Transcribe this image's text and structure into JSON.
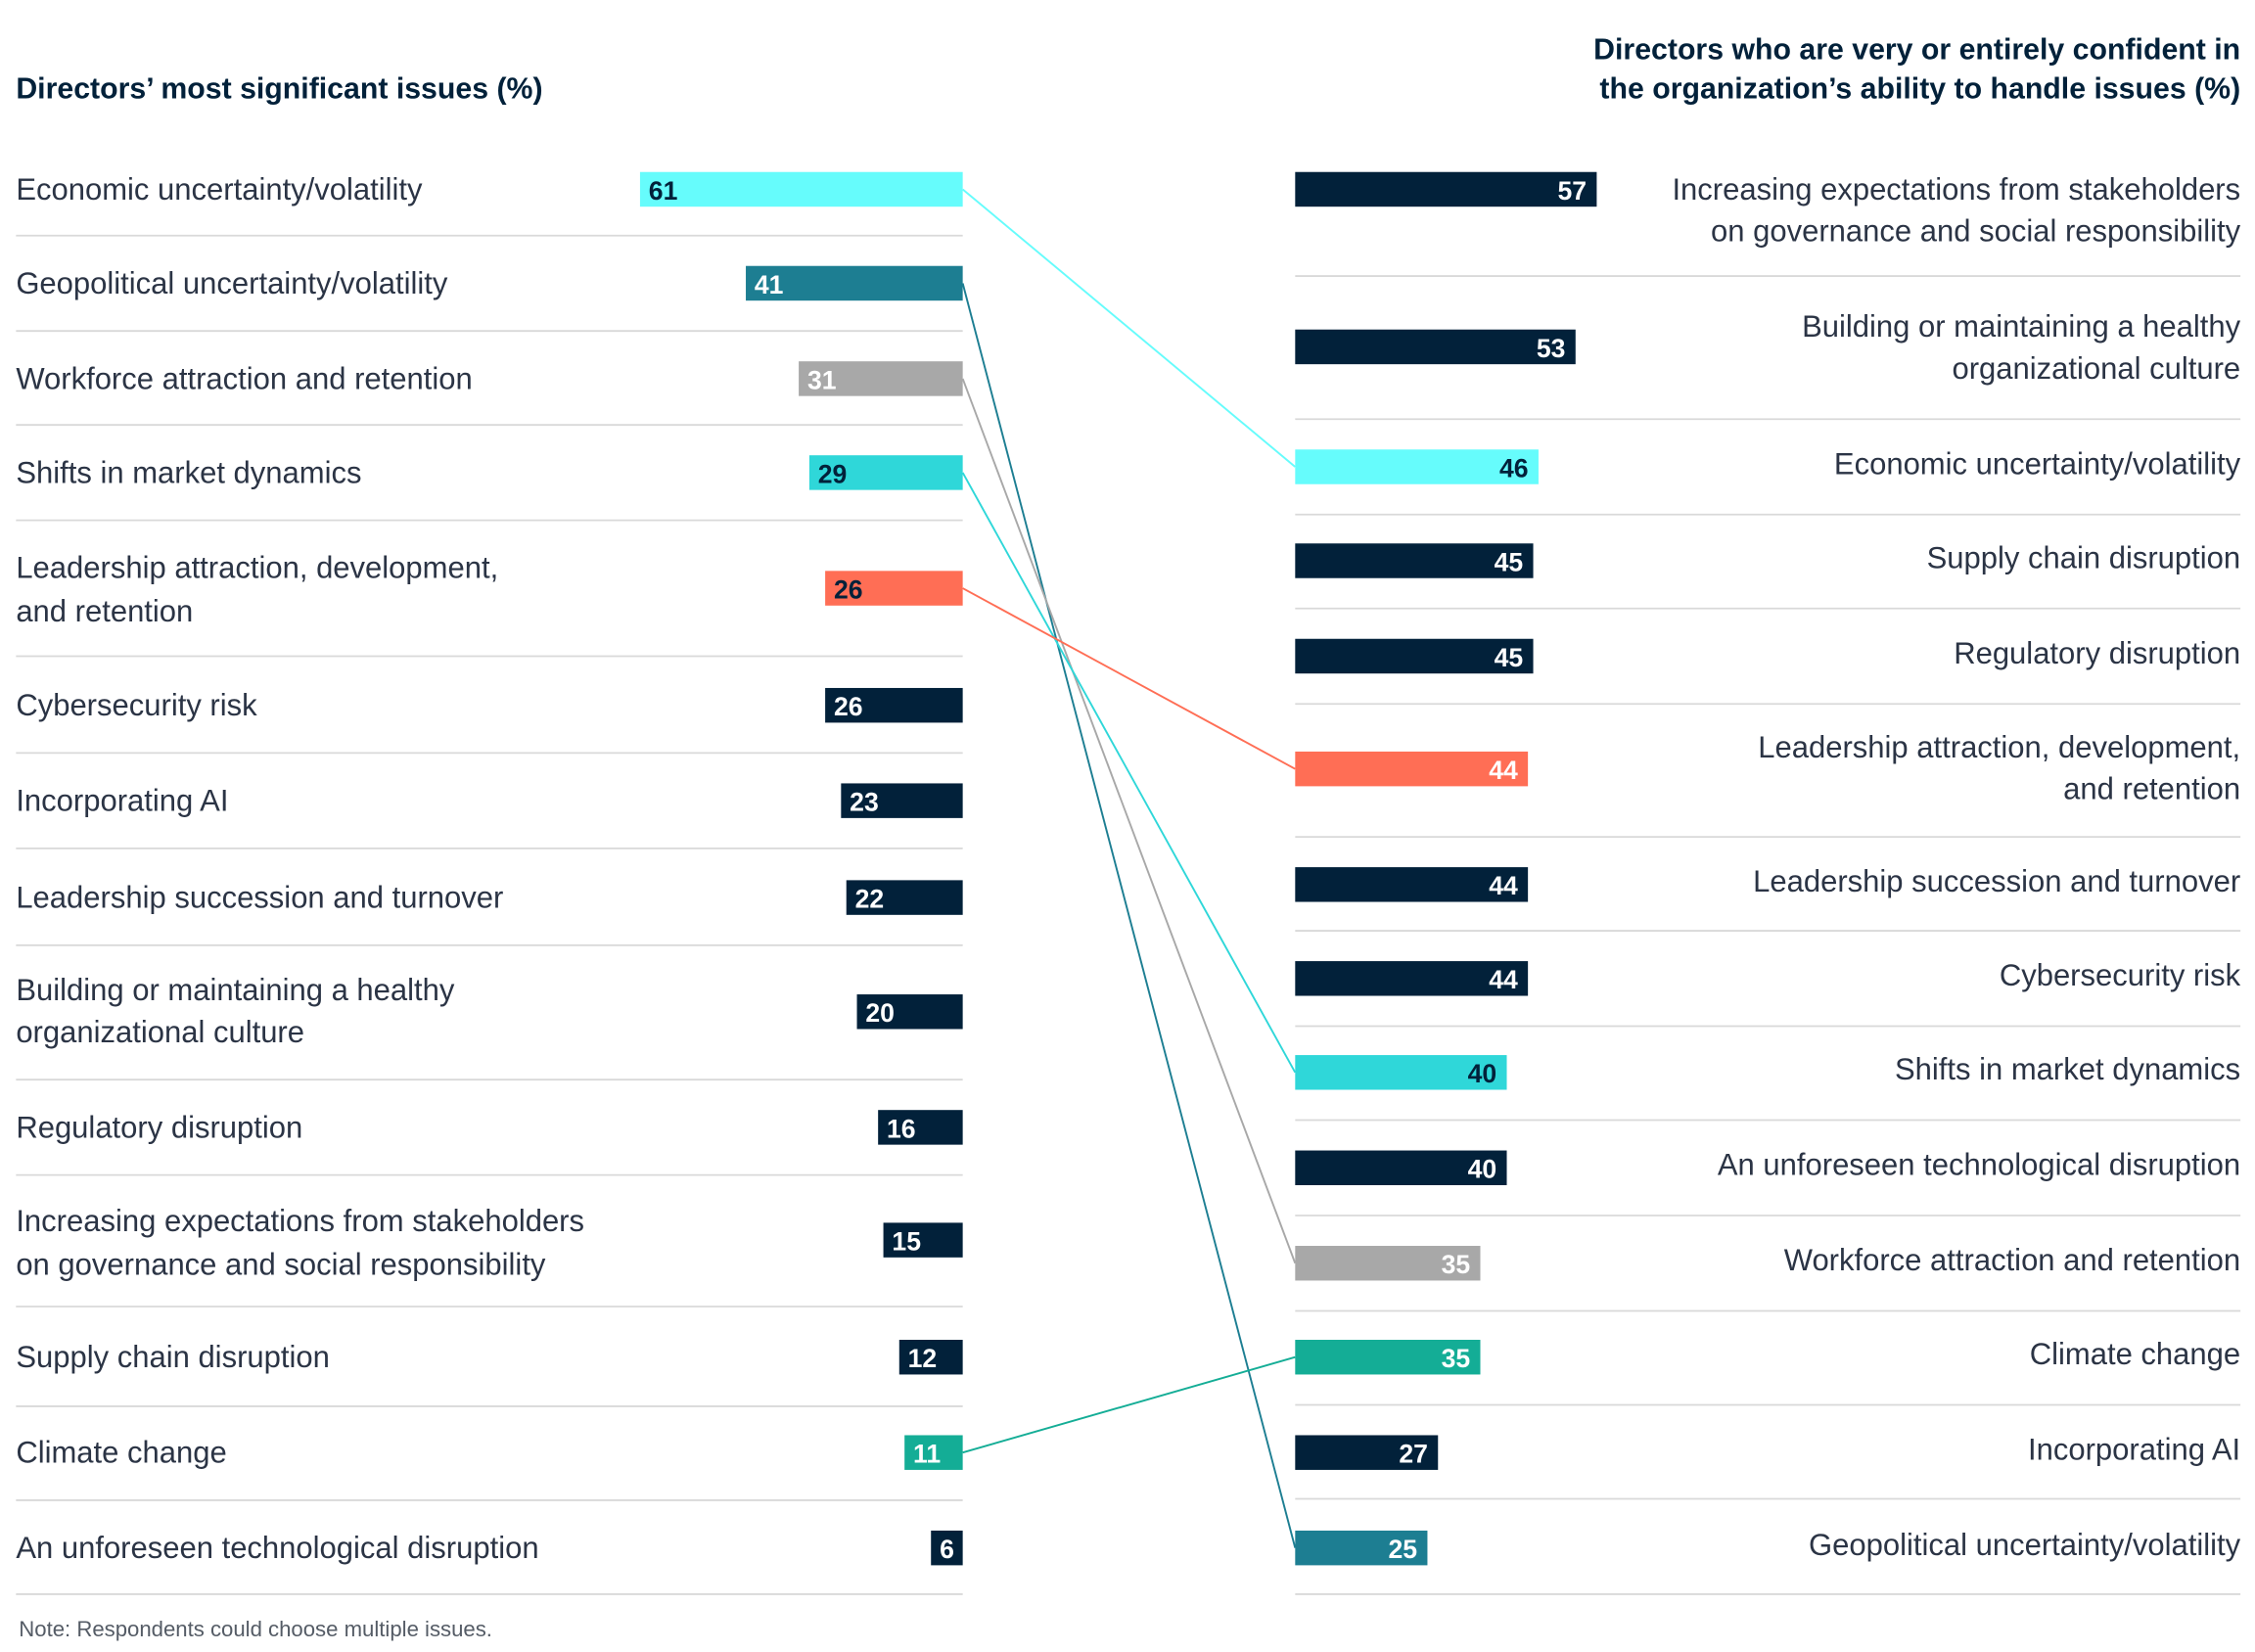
{
  "chart_data": [
    {
      "type": "bar",
      "orientation": "horizontal",
      "title": "Directors’ most significant issues (%)",
      "categories": [
        [
          "Economic uncertainty/volatility"
        ],
        [
          "Geopolitical uncertainty/volatility"
        ],
        [
          "Workforce attraction and retention"
        ],
        [
          "Shifts in market dynamics"
        ],
        [
          "Leadership attraction, development,",
          "and retention"
        ],
        [
          "Cybersecurity risk"
        ],
        [
          "Incorporating AI"
        ],
        [
          "Leadership succession and turnover"
        ],
        [
          "Building or maintaining a healthy",
          "organizational culture"
        ],
        [
          "Regulatory disruption"
        ],
        [
          "Increasing expectations from stakeholders",
          "on governance and social responsibility"
        ],
        [
          "Supply chain disruption"
        ],
        [
          "Climate change"
        ],
        [
          "An unforeseen technological disruption"
        ]
      ],
      "values": [
        61,
        41,
        31,
        29,
        26,
        26,
        23,
        22,
        20,
        16,
        15,
        12,
        11,
        6
      ],
      "bar_colors": [
        "#66fcfc",
        "#1d7e92",
        "#a8a8a8",
        "#2fd7d9",
        "#ff6e55",
        "#02213a",
        "#02213a",
        "#02213a",
        "#02213a",
        "#02213a",
        "#02213a",
        "#02213a",
        "#14ad96",
        "#02213a"
      ],
      "value_label_colors": [
        "#02213a",
        "#ffffff",
        "#ffffff",
        "#02213a",
        "#02213a",
        "#ffffff",
        "#ffffff",
        "#ffffff",
        "#ffffff",
        "#ffffff",
        "#ffffff",
        "#ffffff",
        "#ffffff",
        "#ffffff"
      ]
    },
    {
      "type": "bar",
      "orientation": "horizontal",
      "title": [
        "Directors who are very or entirely confident in",
        "the organization’s ability to handle issues (%)"
      ],
      "categories": [
        [
          "Increasing expectations from stakeholders",
          "on governance and social responsibility"
        ],
        [
          "Building or maintaining a healthy",
          "organizational culture"
        ],
        [
          "Economic uncertainty/volatility"
        ],
        [
          "Supply chain disruption"
        ],
        [
          "Regulatory disruption"
        ],
        [
          "Leadership attraction, development,",
          "and retention"
        ],
        [
          "Leadership succession and turnover"
        ],
        [
          "Cybersecurity risk"
        ],
        [
          "Shifts in market dynamics"
        ],
        [
          "An unforeseen technological disruption"
        ],
        [
          "Workforce attraction and retention"
        ],
        [
          "Climate change"
        ],
        [
          "Incorporating AI"
        ],
        [
          "Geopolitical uncertainty/volatility"
        ]
      ],
      "values": [
        57,
        53,
        46,
        45,
        45,
        44,
        44,
        44,
        40,
        40,
        35,
        35,
        27,
        25
      ],
      "bar_colors": [
        "#02213a",
        "#02213a",
        "#66fcfc",
        "#02213a",
        "#02213a",
        "#ff6e55",
        "#02213a",
        "#02213a",
        "#2fd7d9",
        "#02213a",
        "#a8a8a8",
        "#14ad96",
        "#02213a",
        "#1d7e92"
      ],
      "value_label_colors": [
        "#ffffff",
        "#ffffff",
        "#02213a",
        "#ffffff",
        "#ffffff",
        "#ffffff",
        "#ffffff",
        "#ffffff",
        "#02213a",
        "#ffffff",
        "#ffffff",
        "#ffffff",
        "#ffffff",
        "#ffffff"
      ]
    }
  ],
  "connectors": [
    {
      "from": 0,
      "to": 2,
      "color": "#66fcfc"
    },
    {
      "from": 1,
      "to": 13,
      "color": "#1d7e92"
    },
    {
      "from": 2,
      "to": 10,
      "color": "#a8a8a8"
    },
    {
      "from": 3,
      "to": 8,
      "color": "#2fd7d9"
    },
    {
      "from": 4,
      "to": 5,
      "color": "#ff6e55"
    },
    {
      "from": 12,
      "to": 11,
      "color": "#14ad96"
    }
  ],
  "note": "Note: Respondents could choose multiple issues."
}
